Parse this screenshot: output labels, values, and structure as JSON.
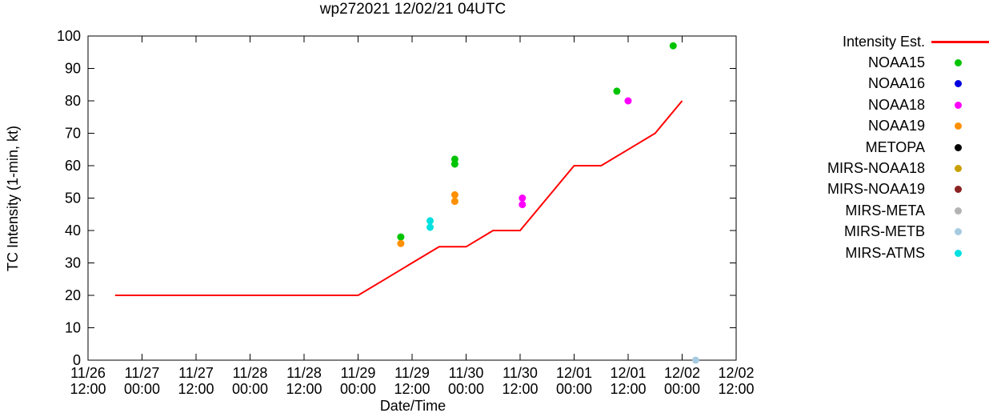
{
  "chart_data": {
    "type": "line+scatter",
    "title": "wp272021 12/02/21 04UTC",
    "xlabel": "Date/Time",
    "ylabel": "TC Intensity (1-min, kt)",
    "grid": false,
    "legend": {
      "position": "right-outside"
    },
    "x_axis": {
      "hours_per_tick": 12,
      "range_hours": [
        0,
        144
      ],
      "ticks": [
        {
          "date": "11/26",
          "time": "12:00"
        },
        {
          "date": "11/27",
          "time": "00:00"
        },
        {
          "date": "11/27",
          "time": "12:00"
        },
        {
          "date": "11/28",
          "time": "00:00"
        },
        {
          "date": "11/28",
          "time": "12:00"
        },
        {
          "date": "11/29",
          "time": "00:00"
        },
        {
          "date": "11/29",
          "time": "12:00"
        },
        {
          "date": "11/30",
          "time": "00:00"
        },
        {
          "date": "11/30",
          "time": "12:00"
        },
        {
          "date": "12/01",
          "time": "00:00"
        },
        {
          "date": "12/01",
          "time": "12:00"
        },
        {
          "date": "12/02",
          "time": "00:00"
        },
        {
          "date": "12/02",
          "time": "12:00"
        }
      ]
    },
    "y_axis": {
      "min": 0,
      "max": 100,
      "tick_step": 10,
      "ticks": [
        0,
        10,
        20,
        30,
        40,
        50,
        60,
        70,
        80,
        90,
        100
      ]
    },
    "line_series": {
      "name": "Intensity Est.",
      "color": "#ff0000",
      "points_hours_kt": [
        [
          6,
          20
        ],
        [
          60,
          20
        ],
        [
          66,
          25
        ],
        [
          72,
          30
        ],
        [
          78,
          35
        ],
        [
          84,
          35
        ],
        [
          90,
          40
        ],
        [
          96,
          40
        ],
        [
          102,
          50
        ],
        [
          108,
          60
        ],
        [
          114,
          60
        ],
        [
          120,
          65
        ],
        [
          126,
          70
        ],
        [
          132,
          80
        ]
      ]
    },
    "scatter_series": [
      {
        "name": "NOAA15",
        "color": "#00c400",
        "points_hours_kt": [
          [
            69.5,
            38
          ],
          [
            81.5,
            62
          ],
          [
            81.5,
            60.5
          ],
          [
            117.5,
            83
          ],
          [
            130,
            97
          ]
        ]
      },
      {
        "name": "NOAA16",
        "color": "#0000e0",
        "points_hours_kt": []
      },
      {
        "name": "NOAA18",
        "color": "#ff00ff",
        "points_hours_kt": [
          [
            96.5,
            50
          ],
          [
            96.5,
            48
          ],
          [
            120,
            80
          ]
        ]
      },
      {
        "name": "NOAA19",
        "color": "#ff9000",
        "points_hours_kt": [
          [
            69.5,
            36
          ],
          [
            81.5,
            51
          ],
          [
            81.5,
            49
          ]
        ]
      },
      {
        "name": "METOPA",
        "color": "#000000",
        "points_hours_kt": []
      },
      {
        "name": "MIRS-NOAA18",
        "color": "#c8a000",
        "points_hours_kt": []
      },
      {
        "name": "MIRS-NOAA19",
        "color": "#8b2323",
        "points_hours_kt": []
      },
      {
        "name": "MIRS-META",
        "color": "#b3b3b3",
        "points_hours_kt": []
      },
      {
        "name": "MIRS-METB",
        "color": "#a6cbe1",
        "points_hours_kt": [
          [
            135,
            0
          ]
        ]
      },
      {
        "name": "MIRS-ATMS",
        "color": "#00e0e0",
        "points_hours_kt": [
          [
            76,
            43
          ],
          [
            76,
            41
          ]
        ]
      }
    ]
  }
}
